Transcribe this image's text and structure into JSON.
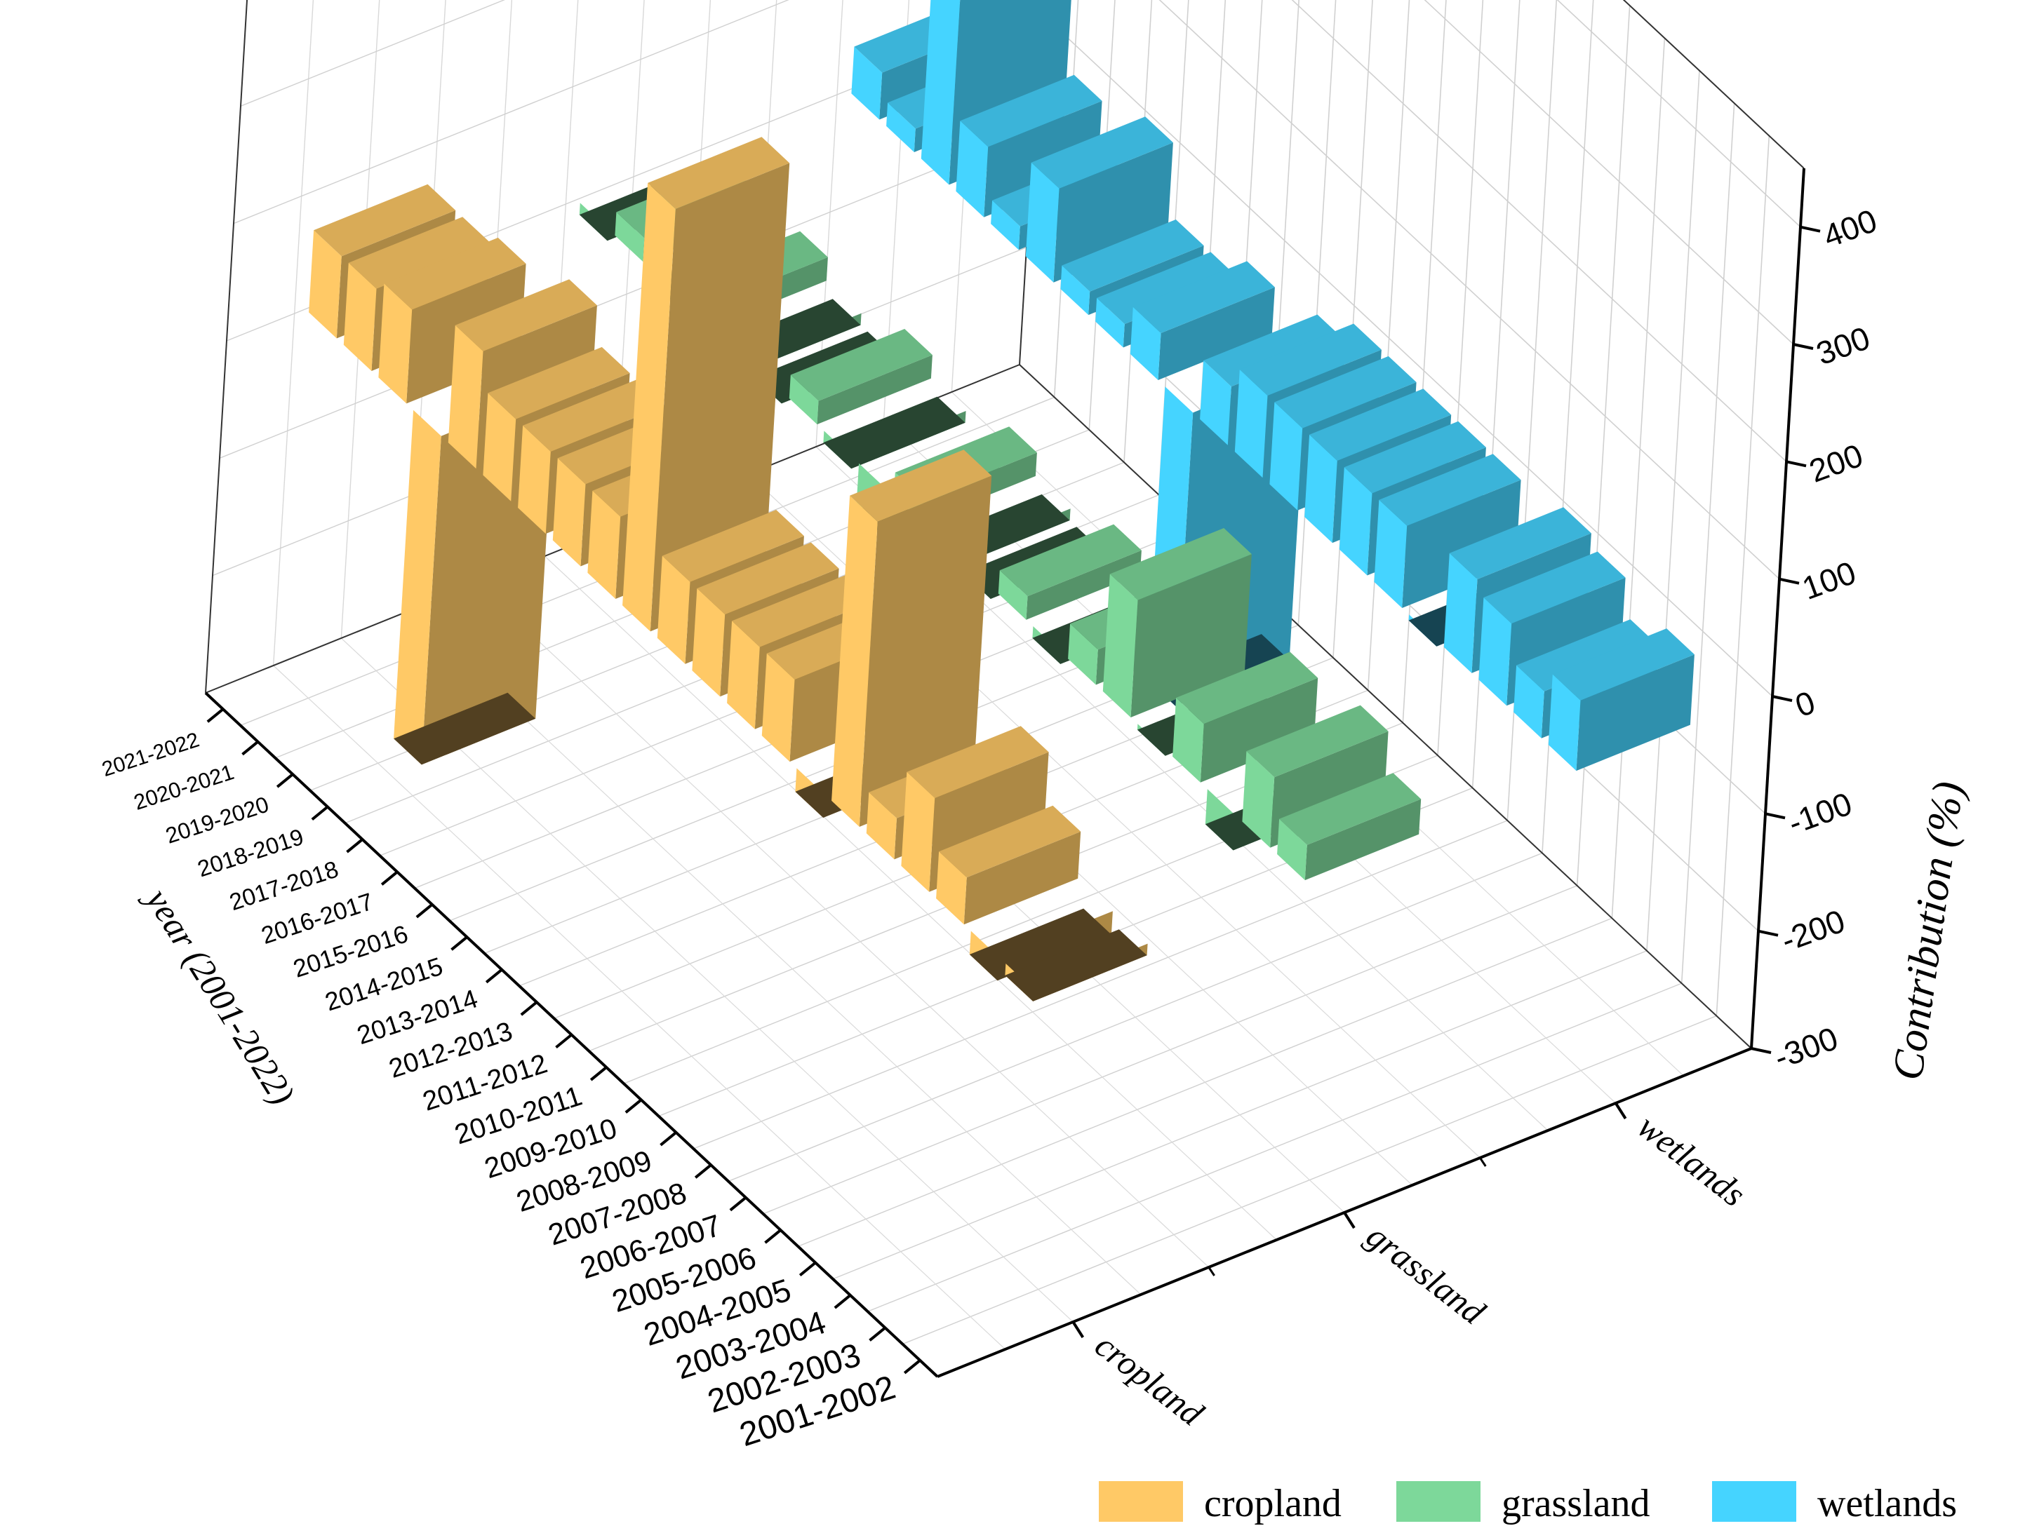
{
  "chart_data": {
    "type": "bar3d",
    "z_axis": {
      "title": "Contribution (%)",
      "ticks": [
        -300,
        -200,
        -100,
        0,
        100,
        200,
        300,
        400
      ],
      "range": [
        -300,
        450
      ]
    },
    "y_axis": {
      "title": "year (2001-2022)",
      "categories": [
        "2001-2002",
        "2002-2003",
        "2003-2004",
        "2004-2005",
        "2005-2006",
        "2006-2007",
        "2007-2008",
        "2008-2009",
        "2009-2010",
        "2010-2011",
        "2011-2012",
        "2012-2013",
        "2013-2014",
        "2014-2015",
        "2015-2016",
        "2016-2017",
        "2017-2018",
        "2018-2019",
        "2019-2020",
        "2020-2021",
        "2021-2022"
      ]
    },
    "x_axis": {
      "categories": [
        "cropland",
        "grassland",
        "wetlands"
      ]
    },
    "series": [
      {
        "name": "cropland",
        "color": "#FFC966",
        "values": [
          -10,
          -20,
          40,
          80,
          35,
          260,
          -20,
          70,
          70,
          70,
          70,
          360,
          70,
          70,
          70,
          70,
          100,
          -280,
          80,
          70,
          70
        ]
      },
      {
        "name": "grassland",
        "color": "#7DD89A",
        "values": [
          30,
          60,
          -30,
          50,
          -5,
          100,
          30,
          -10,
          20,
          -10,
          -10,
          20,
          -40,
          -10,
          20,
          -10,
          -10,
          20,
          -10,
          20,
          -10
        ]
      },
      {
        "name": "wetlands",
        "color": "#45D4FF",
        "values": [
          60,
          40,
          70,
          80,
          -5,
          70,
          70,
          70,
          70,
          70,
          50,
          -250,
          40,
          20,
          20,
          80,
          20,
          60,
          430,
          20,
          40
        ]
      }
    ],
    "legend": {
      "position": "bottom-right",
      "items": [
        {
          "label": "cropland",
          "color": "#FFC966"
        },
        {
          "label": "grassland",
          "color": "#7DD89A"
        },
        {
          "label": "wetlands",
          "color": "#45D4FF"
        }
      ]
    },
    "grid": true
  }
}
